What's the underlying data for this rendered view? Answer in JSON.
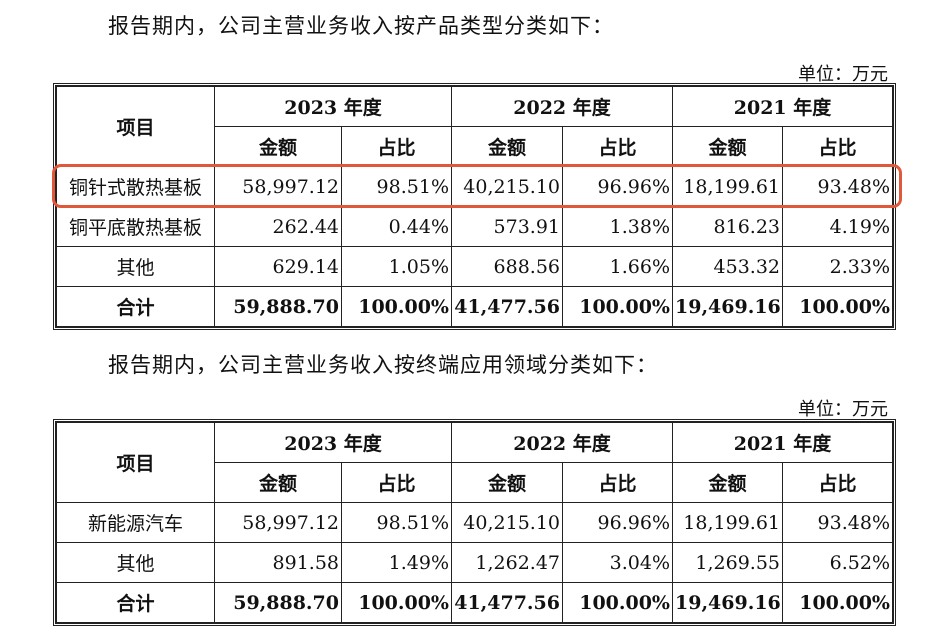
{
  "intro1": "报告期内，公司主营业务收入按产品类型分类如下：",
  "intro2": "报告期内，公司主营业务收入按终端应用领域分类如下：",
  "unit": "单位：万元",
  "header": {
    "item": "项目",
    "years": [
      "2023 年度",
      "2022 年度",
      "2021 年度"
    ],
    "amount": "金额",
    "ratio": "占比"
  },
  "table1": {
    "rows": [
      {
        "label": "铜针式散热基板",
        "cells": [
          "58,997.12",
          "98.51%",
          "40,215.10",
          "96.96%",
          "18,199.61",
          "93.48%"
        ]
      },
      {
        "label": "铜平底散热基板",
        "cells": [
          "262.44",
          "0.44%",
          "573.91",
          "1.38%",
          "816.23",
          "4.19%"
        ]
      },
      {
        "label": "其他",
        "cells": [
          "629.14",
          "1.05%",
          "688.56",
          "1.66%",
          "453.32",
          "2.33%"
        ]
      },
      {
        "label": "合计",
        "cells": [
          "59,888.70",
          "100.00%",
          "41,477.56",
          "100.00%",
          "19,469.16",
          "100.00%"
        ]
      }
    ]
  },
  "table2": {
    "rows": [
      {
        "label": "新能源汽车",
        "cells": [
          "58,997.12",
          "98.51%",
          "40,215.10",
          "96.96%",
          "18,199.61",
          "93.48%"
        ]
      },
      {
        "label": "其他",
        "cells": [
          "891.58",
          "1.49%",
          "1,262.47",
          "3.04%",
          "1,269.55",
          "6.52%"
        ]
      },
      {
        "label": "合计",
        "cells": [
          "59,888.70",
          "100.00%",
          "41,477.56",
          "100.00%",
          "19,469.16",
          "100.00%"
        ]
      }
    ]
  },
  "highlight_color": "#e0583a"
}
